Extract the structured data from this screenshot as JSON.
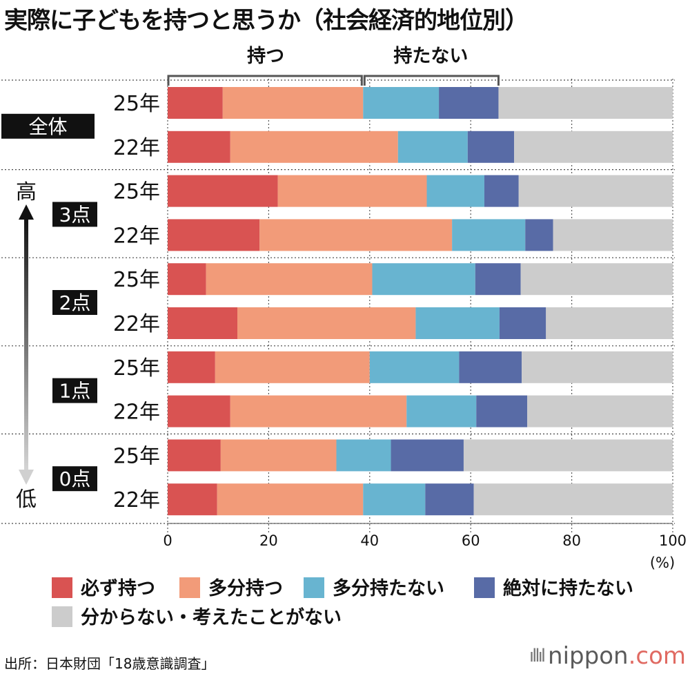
{
  "title": "実際に子どもを持つと思うか（社会経済的地位別）",
  "bracket_labels": {
    "have": "持つ",
    "not_have": "持たない"
  },
  "axis_arrow": {
    "high": "高",
    "low": "低"
  },
  "unit": "(%)",
  "source": "出所：日本財団「18歳意識調査」",
  "brand": {
    "name": "nippon",
    "suffix": ".com"
  },
  "colors": {
    "definitely": "#d95352",
    "probably": "#f29b79",
    "probably_not": "#68b4d0",
    "definitely_not": "#586ba6",
    "unknown": "#cccccc"
  },
  "chart_data": {
    "type": "bar",
    "orientation": "horizontal",
    "stacked": true,
    "xlim": [
      0,
      100
    ],
    "xticks": [
      "0",
      "20",
      "40",
      "60",
      "80",
      "100"
    ],
    "legend_placement": "bottom",
    "series": [
      {
        "name": "必ず持つ",
        "color_key": "definitely"
      },
      {
        "name": "多分持つ",
        "color_key": "probably"
      },
      {
        "name": "多分持たない",
        "color_key": "probably_not"
      },
      {
        "name": "絶対に持たない",
        "color_key": "definitely_not"
      },
      {
        "name": "分からない・考えたことがない",
        "color_key": "unknown"
      }
    ],
    "groups": [
      {
        "label": "全体",
        "rows": [
          {
            "year": "25年",
            "values": [
              10.9,
              27.8,
              15.0,
              11.8,
              34.5
            ]
          },
          {
            "year": "22年",
            "values": [
              12.4,
              33.2,
              13.8,
              9.2,
              31.4
            ]
          }
        ]
      },
      {
        "label": "3点",
        "rows": [
          {
            "year": "25年",
            "values": [
              21.8,
              29.5,
              11.4,
              6.8,
              30.5
            ]
          },
          {
            "year": "22年",
            "values": [
              18.2,
              38.1,
              14.5,
              5.5,
              23.7
            ]
          }
        ]
      },
      {
        "label": "2点",
        "rows": [
          {
            "year": "25年",
            "values": [
              7.6,
              32.9,
              20.4,
              9.0,
              30.1
            ]
          },
          {
            "year": "22年",
            "values": [
              13.8,
              35.3,
              16.6,
              9.2,
              25.1
            ]
          }
        ]
      },
      {
        "label": "1点",
        "rows": [
          {
            "year": "25年",
            "values": [
              9.4,
              30.6,
              17.7,
              12.4,
              29.9
            ]
          },
          {
            "year": "22年",
            "values": [
              12.4,
              34.9,
              13.8,
              10.1,
              28.8
            ]
          }
        ]
      },
      {
        "label": "0点",
        "rows": [
          {
            "year": "25年",
            "values": [
              10.5,
              22.9,
              10.8,
              14.4,
              41.4
            ]
          },
          {
            "year": "22年",
            "values": [
              9.8,
              28.9,
              12.3,
              9.6,
              39.4
            ]
          }
        ]
      }
    ]
  }
}
